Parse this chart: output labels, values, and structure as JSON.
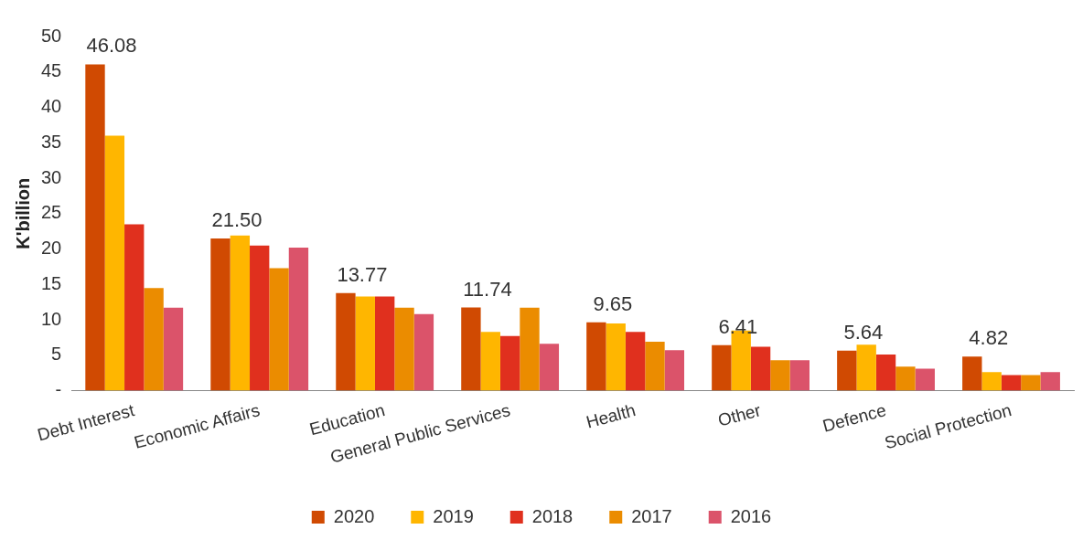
{
  "chart_data": {
    "type": "bar",
    "ylabel": "K'billion",
    "categories": [
      "Debt Interest",
      "Economic Affairs",
      "Education",
      "General Public Services",
      "Health",
      "Other",
      "Defence",
      "Social Protection"
    ],
    "series": [
      {
        "name": "2020",
        "color": "#d04a02",
        "values": [
          46.08,
          21.5,
          13.77,
          11.74,
          9.65,
          6.41,
          5.64,
          4.82
        ],
        "value_labels": [
          "46.08",
          "21.50",
          "13.77",
          "11.74",
          "9.65",
          "6.41",
          "5.64",
          "4.82"
        ]
      },
      {
        "name": "2019",
        "color": "#ffb600",
        "values": [
          36.0,
          21.9,
          13.3,
          8.3,
          9.5,
          8.5,
          6.5,
          2.6
        ]
      },
      {
        "name": "2018",
        "color": "#e0301e",
        "values": [
          23.5,
          20.5,
          13.3,
          7.7,
          8.3,
          6.2,
          5.1,
          2.2
        ]
      },
      {
        "name": "2017",
        "color": "#eb8c00",
        "values": [
          14.5,
          17.3,
          11.7,
          11.7,
          6.9,
          4.3,
          3.4,
          2.2
        ]
      },
      {
        "name": "2016",
        "color": "#db536a",
        "values": [
          11.7,
          20.2,
          10.8,
          6.6,
          5.7,
          4.3,
          3.1,
          2.6
        ]
      }
    ],
    "ylim": [
      0,
      50
    ],
    "yticks": [
      {
        "value": 0,
        "label": "-"
      },
      5,
      10,
      15,
      20,
      25,
      30,
      35,
      40,
      45,
      50
    ],
    "grid": false,
    "legend": "bottom"
  }
}
